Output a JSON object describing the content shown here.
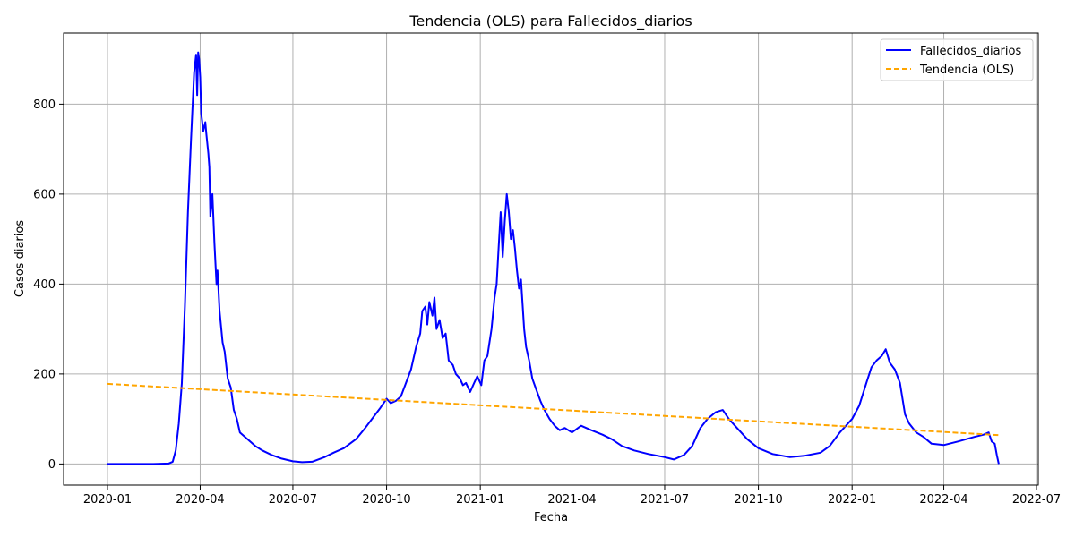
{
  "chart_data": {
    "type": "line",
    "title": "Tendencia (OLS) para Fallecidos_diarios",
    "xlabel": "Fecha",
    "ylabel": "Casos diarios",
    "x_ticks": [
      "2020-01",
      "2020-04",
      "2020-07",
      "2020-10",
      "2021-01",
      "2021-04",
      "2021-07",
      "2021-10",
      "2022-01",
      "2022-04",
      "2022-07"
    ],
    "y_ticks": [
      "0",
      "200",
      "400",
      "600",
      "800"
    ],
    "ylim": [
      -47,
      958
    ],
    "grid": true,
    "legend_location": "top-right",
    "series": [
      {
        "name": "Fallecidos_diarios",
        "color": "#0000ff",
        "style": "solid",
        "points": [
          [
            "2020-01-01",
            0
          ],
          [
            "2020-02-15",
            0
          ],
          [
            "2020-03-01",
            1
          ],
          [
            "2020-03-05",
            5
          ],
          [
            "2020-03-08",
            30
          ],
          [
            "2020-03-11",
            90
          ],
          [
            "2020-03-14",
            180
          ],
          [
            "2020-03-17",
            350
          ],
          [
            "2020-03-20",
            560
          ],
          [
            "2020-03-23",
            720
          ],
          [
            "2020-03-26",
            870
          ],
          [
            "2020-03-28",
            910
          ],
          [
            "2020-03-29",
            820
          ],
          [
            "2020-03-30",
            915
          ],
          [
            "2020-03-31",
            900
          ],
          [
            "2020-04-01",
            860
          ],
          [
            "2020-04-02",
            780
          ],
          [
            "2020-04-04",
            740
          ],
          [
            "2020-04-06",
            760
          ],
          [
            "2020-04-07",
            735
          ],
          [
            "2020-04-09",
            690
          ],
          [
            "2020-04-10",
            660
          ],
          [
            "2020-04-11",
            550
          ],
          [
            "2020-04-13",
            600
          ],
          [
            "2020-04-15",
            490
          ],
          [
            "2020-04-17",
            400
          ],
          [
            "2020-04-18",
            430
          ],
          [
            "2020-04-20",
            340
          ],
          [
            "2020-04-23",
            270
          ],
          [
            "2020-04-25",
            250
          ],
          [
            "2020-04-28",
            190
          ],
          [
            "2020-05-01",
            170
          ],
          [
            "2020-05-04",
            120
          ],
          [
            "2020-05-07",
            100
          ],
          [
            "2020-05-10",
            70
          ],
          [
            "2020-05-15",
            60
          ],
          [
            "2020-05-20",
            50
          ],
          [
            "2020-05-25",
            40
          ],
          [
            "2020-06-01",
            30
          ],
          [
            "2020-06-10",
            20
          ],
          [
            "2020-06-20",
            12
          ],
          [
            "2020-07-01",
            6
          ],
          [
            "2020-07-10",
            4
          ],
          [
            "2020-07-20",
            5
          ],
          [
            "2020-08-01",
            15
          ],
          [
            "2020-08-10",
            25
          ],
          [
            "2020-08-20",
            35
          ],
          [
            "2020-09-01",
            55
          ],
          [
            "2020-09-10",
            80
          ],
          [
            "2020-09-20",
            110
          ],
          [
            "2020-09-25",
            125
          ],
          [
            "2020-10-01",
            145
          ],
          [
            "2020-10-05",
            135
          ],
          [
            "2020-10-10",
            140
          ],
          [
            "2020-10-15",
            150
          ],
          [
            "2020-10-20",
            180
          ],
          [
            "2020-10-25",
            210
          ],
          [
            "2020-10-30",
            260
          ],
          [
            "2020-11-03",
            290
          ],
          [
            "2020-11-05",
            340
          ],
          [
            "2020-11-08",
            350
          ],
          [
            "2020-11-10",
            310
          ],
          [
            "2020-11-12",
            360
          ],
          [
            "2020-11-15",
            330
          ],
          [
            "2020-11-17",
            370
          ],
          [
            "2020-11-19",
            300
          ],
          [
            "2020-11-22",
            320
          ],
          [
            "2020-11-25",
            280
          ],
          [
            "2020-11-28",
            290
          ],
          [
            "2020-12-01",
            230
          ],
          [
            "2020-12-05",
            220
          ],
          [
            "2020-12-08",
            200
          ],
          [
            "2020-12-12",
            190
          ],
          [
            "2020-12-15",
            175
          ],
          [
            "2020-12-18",
            180
          ],
          [
            "2020-12-22",
            160
          ],
          [
            "2020-12-26",
            180
          ],
          [
            "2020-12-29",
            195
          ],
          [
            "2021-01-02",
            175
          ],
          [
            "2021-01-05",
            230
          ],
          [
            "2021-01-08",
            240
          ],
          [
            "2021-01-12",
            300
          ],
          [
            "2021-01-15",
            370
          ],
          [
            "2021-01-17",
            400
          ],
          [
            "2021-01-19",
            480
          ],
          [
            "2021-01-21",
            560
          ],
          [
            "2021-01-23",
            460
          ],
          [
            "2021-01-25",
            540
          ],
          [
            "2021-01-27",
            600
          ],
          [
            "2021-01-29",
            560
          ],
          [
            "2021-01-31",
            500
          ],
          [
            "2021-02-02",
            520
          ],
          [
            "2021-02-04",
            480
          ],
          [
            "2021-02-06",
            430
          ],
          [
            "2021-02-08",
            390
          ],
          [
            "2021-02-10",
            410
          ],
          [
            "2021-02-13",
            300
          ],
          [
            "2021-02-15",
            260
          ],
          [
            "2021-02-18",
            230
          ],
          [
            "2021-02-21",
            190
          ],
          [
            "2021-02-25",
            165
          ],
          [
            "2021-03-01",
            140
          ],
          [
            "2021-03-05",
            120
          ],
          [
            "2021-03-10",
            100
          ],
          [
            "2021-03-15",
            85
          ],
          [
            "2021-03-20",
            75
          ],
          [
            "2021-03-25",
            80
          ],
          [
            "2021-04-01",
            70
          ],
          [
            "2021-04-10",
            85
          ],
          [
            "2021-04-20",
            75
          ],
          [
            "2021-05-01",
            65
          ],
          [
            "2021-05-10",
            55
          ],
          [
            "2021-05-20",
            40
          ],
          [
            "2021-06-01",
            30
          ],
          [
            "2021-06-15",
            22
          ],
          [
            "2021-07-01",
            15
          ],
          [
            "2021-07-10",
            10
          ],
          [
            "2021-07-20",
            20
          ],
          [
            "2021-07-28",
            40
          ],
          [
            "2021-08-05",
            80
          ],
          [
            "2021-08-12",
            100
          ],
          [
            "2021-08-20",
            115
          ],
          [
            "2021-08-27",
            120
          ],
          [
            "2021-09-02",
            100
          ],
          [
            "2021-09-10",
            80
          ],
          [
            "2021-09-20",
            55
          ],
          [
            "2021-10-01",
            35
          ],
          [
            "2021-10-15",
            22
          ],
          [
            "2021-11-01",
            15
          ],
          [
            "2021-11-15",
            18
          ],
          [
            "2021-12-01",
            25
          ],
          [
            "2021-12-10",
            40
          ],
          [
            "2021-12-20",
            70
          ],
          [
            "2022-01-01",
            100
          ],
          [
            "2022-01-08",
            130
          ],
          [
            "2022-01-15",
            180
          ],
          [
            "2022-01-20",
            215
          ],
          [
            "2022-01-25",
            230
          ],
          [
            "2022-01-30",
            240
          ],
          [
            "2022-02-03",
            255
          ],
          [
            "2022-02-07",
            225
          ],
          [
            "2022-02-12",
            210
          ],
          [
            "2022-02-17",
            180
          ],
          [
            "2022-02-22",
            110
          ],
          [
            "2022-02-26",
            90
          ],
          [
            "2022-03-05",
            70
          ],
          [
            "2022-03-12",
            60
          ],
          [
            "2022-03-20",
            45
          ],
          [
            "2022-04-01",
            42
          ],
          [
            "2022-04-15",
            50
          ],
          [
            "2022-05-01",
            60
          ],
          [
            "2022-05-10",
            65
          ],
          [
            "2022-05-15",
            70
          ],
          [
            "2022-05-18",
            50
          ],
          [
            "2022-05-21",
            45
          ],
          [
            "2022-05-23",
            20
          ],
          [
            "2022-05-25",
            0
          ]
        ]
      },
      {
        "name": "Tendencia (OLS)",
        "color": "#ffa500",
        "style": "dashed",
        "points": [
          [
            "2020-01-01",
            178
          ],
          [
            "2022-05-25",
            64
          ]
        ]
      }
    ]
  }
}
